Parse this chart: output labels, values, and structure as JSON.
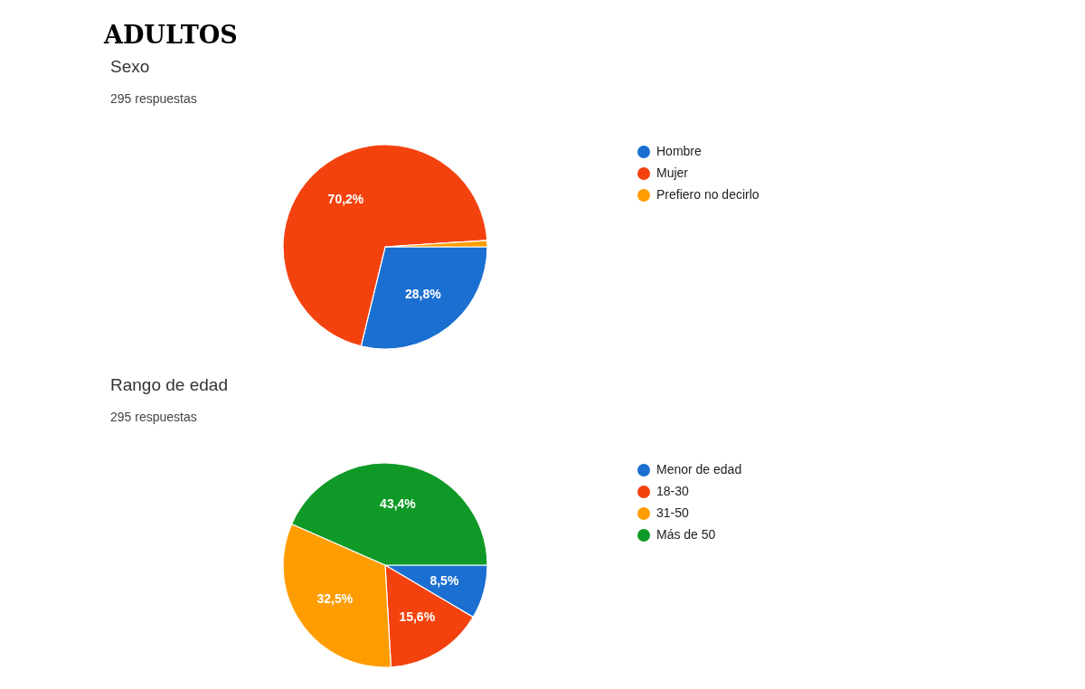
{
  "chart_data": [
    {
      "type": "pie",
      "title": "Sexo",
      "subtitle": "295 respuestas",
      "annotations": [
        "ADULTOS"
      ],
      "categories": [
        "Hombre",
        "Mujer",
        "Prefiero no decirlo"
      ],
      "values": [
        28.8,
        70.2,
        1.0
      ],
      "colors": [
        "#1a6fd1",
        "#f4420f",
        "#ff9d00"
      ],
      "value_labels": [
        "28,8%",
        "70,2%",
        null
      ],
      "legend": "right"
    },
    {
      "type": "pie",
      "title": "Rango de edad",
      "subtitle": "295 respuestas",
      "categories": [
        "Menor de edad",
        "18-30",
        "31-50",
        "Más de 50"
      ],
      "values": [
        8.5,
        15.6,
        32.5,
        43.4
      ],
      "colors": [
        "#1a6fd1",
        "#f4420f",
        "#ff9d00",
        "#0f9a27"
      ],
      "value_labels": [
        "8,5%",
        "15,6%",
        "32,5%",
        "43,4%"
      ],
      "legend": "right"
    }
  ]
}
